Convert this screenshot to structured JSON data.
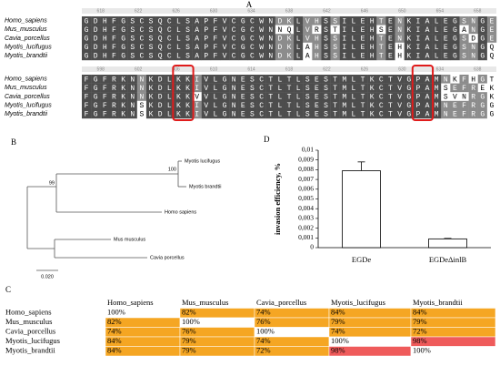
{
  "panels": {
    "a": "A",
    "b": "B",
    "c": "C",
    "d": "D"
  },
  "alignment": {
    "blocks": [
      {
        "ruler": [
          "618",
          "622",
          "626",
          "630",
          "634",
          "638",
          "642",
          "646",
          "650",
          "654",
          "658"
        ],
        "rows": [
          {
            "name": "Homo_sapiens",
            "seq": "GDHFGSCSQCLSAPFVCGCWNDKLVHSSILEHTENKIALEGSNGE"
          },
          {
            "name": "Mus_musculus",
            "seq": "GDHFGSCSQCLSAPFVCGCWNNQLVRSTILEHSENKIALEGANGE"
          },
          {
            "name": "Cavia_porcellus",
            "seq": "GDHFGSCSQCLSAPFVCGCWNDKLVHSSILEHTENKIALEGSDGE"
          },
          {
            "name": "Myotis_lucifugus",
            "seq": "GDHFGSCSQCLSAPFVCGCWNDKLAHSSILEHTEHKIALEGSNGQ"
          },
          {
            "name": "Myotis_brandtii",
            "seq": "GDHFGSCSQCLSAPFVCGCWNDKLAHSSILEHTEHKIALEGSNGQ"
          }
        ]
      },
      {
        "ruler": [
          "598",
          "602",
          "606",
          "610",
          "614",
          "618",
          "622",
          "626",
          "630",
          "634",
          "638"
        ],
        "rows": [
          {
            "name": "Homo_sapiens",
            "seq": "FGFRKNNKDLKKIVLGNESCTLTLSESTMLTKCTVGPAMNKFHGT"
          },
          {
            "name": "Mus_musculus",
            "seq": "FGFRKNNKDLKKIVLGNESCTLTLSESTMLTKCTVGPAMSEFREK"
          },
          {
            "name": "Cavia_porcellus",
            "seq": "FGFRKNNKDLKKVVLGNESCTLTLSESTMLTKCTVGPAMSVNRGK"
          },
          {
            "name": "Myotis_lucifugus",
            "seq": "FGFRKNSKDLKKIVLGNESCTLTLSESTMLTKCTVGPAMNEFRGG"
          },
          {
            "name": "Myotis_brandtii",
            "seq": "FGFRKNSKDLKKIVLGNESCTLTLSESTMLTKCTVGPAMNEFRGG"
          }
        ]
      }
    ]
  },
  "tree": {
    "leaves": [
      "Myotis lucifugus",
      "Myotis brandtii",
      "Homo sapiens",
      "Mus musculus",
      "Cavia porcellus"
    ],
    "bootstrap": [
      "100",
      "99"
    ],
    "scale": "0.020"
  },
  "chart_data": {
    "type": "bar",
    "y_label": "invasion efficiency, %",
    "categories": [
      "EGDe",
      "EGDeΔinlB"
    ],
    "values": [
      0.0079,
      0.0009
    ],
    "errors": [
      0.0009,
      5e-05
    ],
    "color": "#ffffff",
    "ylim": [
      0,
      0.01
    ],
    "yticks": [
      0,
      {
        "value": 0.001,
        "label": "0,001"
      },
      {
        "value": 0.002,
        "label": "0,002"
      },
      {
        "value": 0.003,
        "label": "0,003"
      },
      {
        "value": 0.004,
        "label": "0,004"
      },
      {
        "value": 0.005,
        "label": "0,005"
      },
      {
        "value": 0.006,
        "label": "0,006"
      },
      {
        "value": 0.007,
        "label": "0,007"
      },
      {
        "value": 0.008,
        "label": "0,008"
      },
      {
        "value": 0.009,
        "label": "0,009"
      },
      {
        "value": 0.01,
        "label": "0,01"
      }
    ]
  },
  "table": {
    "header": [
      "Homo_sapiens",
      "Mus_musculus",
      "Cavia_porcellus",
      "Myotis_lucifugus",
      "Myotis_brandtii"
    ],
    "rows": [
      {
        "name": "Homo_sapiens",
        "cells": [
          "100%",
          "82%",
          "74%",
          "84%",
          "84%"
        ],
        "colors": [
          "#ffffff",
          "#f5a623",
          "#f5a623",
          "#f5a623",
          "#f5a623"
        ]
      },
      {
        "name": "Mus_musculus",
        "cells": [
          "82%",
          "100%",
          "76%",
          "79%",
          "79%"
        ],
        "colors": [
          "#f5a623",
          "#ffffff",
          "#f5a623",
          "#f5a623",
          "#f5a623"
        ]
      },
      {
        "name": "Cavia_porcellus",
        "cells": [
          "74%",
          "76%",
          "100%",
          "74%",
          "72%"
        ],
        "colors": [
          "#f5a623",
          "#f5a623",
          "#ffffff",
          "#f5a623",
          "#f5a623"
        ]
      },
      {
        "name": "Myotis_lucifugus",
        "cells": [
          "84%",
          "79%",
          "74%",
          "100%",
          "98%"
        ],
        "colors": [
          "#f5a623",
          "#f5a623",
          "#f5a623",
          "#ffffff",
          "#ef5b5b"
        ]
      },
      {
        "name": "Myotis_brandtii",
        "cells": [
          "84%",
          "79%",
          "72%",
          "98%",
          "100%"
        ],
        "colors": [
          "#f5a623",
          "#f5a623",
          "#f5a623",
          "#ef5b5b",
          "#ffffff"
        ]
      }
    ]
  }
}
